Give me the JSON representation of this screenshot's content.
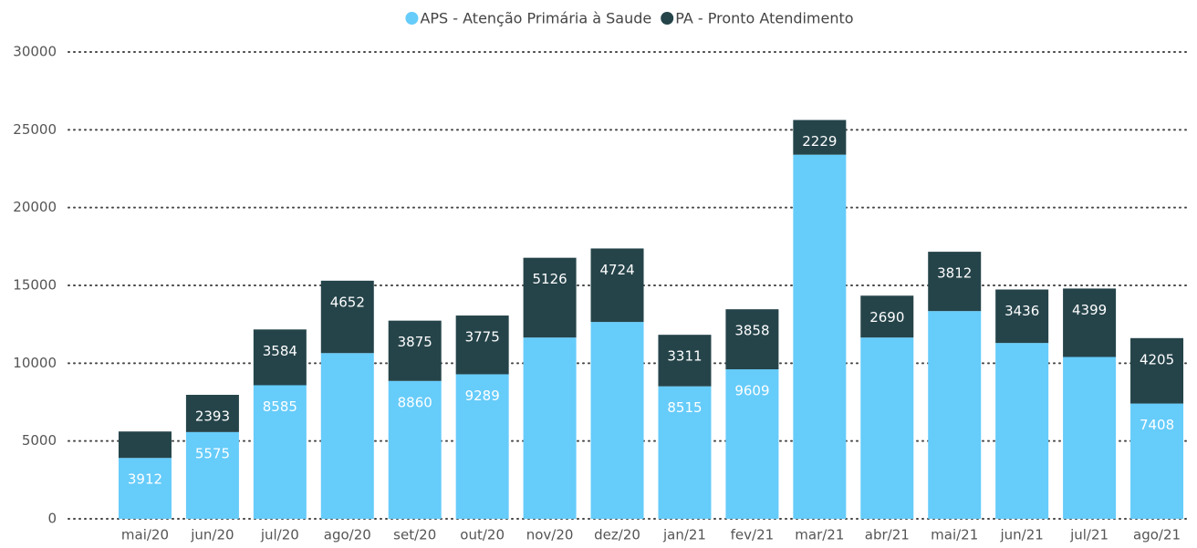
{
  "chart_data": {
    "type": "stacked-bar",
    "categories": [
      "mai/20",
      "jun/20",
      "jul/20",
      "ago/20",
      "set/20",
      "out/20",
      "nov/20",
      "dez/20",
      "jan/21",
      "fev/21",
      "mar/21",
      "abr/21",
      "mai/21",
      "jun/21",
      "jul/21",
      "ago/21"
    ],
    "series": [
      {
        "name": "APS - Atenção Primária à Saude",
        "color": "#66ccfa",
        "values": [
          3912,
          5575,
          8585,
          10650,
          8860,
          9289,
          11650,
          12650,
          8515,
          9609,
          23400,
          11650,
          13350,
          11300,
          10400,
          7408
        ],
        "value_labels": [
          "3912",
          "5575",
          "8585",
          null,
          "8860",
          "9289",
          null,
          null,
          "8515",
          "9609",
          null,
          null,
          null,
          null,
          null,
          "7408"
        ]
      },
      {
        "name": "PA - Pronto Atendimento",
        "color": "#25444a",
        "values": [
          1700,
          2393,
          3584,
          4652,
          3875,
          3775,
          5126,
          4724,
          3311,
          3858,
          2229,
          2690,
          3812,
          3436,
          4399,
          4205
        ],
        "value_labels": [
          null,
          "2393",
          "3584",
          "4652",
          "3875",
          "3775",
          "5126",
          "4724",
          "3311",
          "3858",
          "2229",
          "2690",
          "3812",
          "3436",
          "4399",
          "4205"
        ]
      }
    ],
    "ylim": [
      0,
      30000
    ],
    "yticks": [
      0,
      5000,
      10000,
      15000,
      20000,
      25000,
      30000
    ],
    "grid": true
  }
}
